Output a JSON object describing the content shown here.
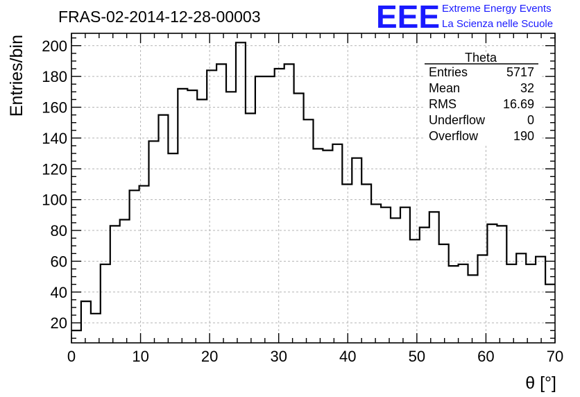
{
  "header": {
    "run_title": "FRAS-02-2014-12-28-00003",
    "logo_text": "EEE",
    "project_line1": "Extreme Energy Events",
    "project_line2": "La Scienza nelle Scuole",
    "brand_color": "#1a1aff"
  },
  "stats_box": {
    "title": "Theta",
    "rows": [
      {
        "label": "Entries",
        "value": "5717"
      },
      {
        "label": "Mean",
        "value": "32"
      },
      {
        "label": "RMS",
        "value": "16.69"
      },
      {
        "label": "Underflow",
        "value": "0"
      },
      {
        "label": "Overflow",
        "value": "190"
      }
    ]
  },
  "chart_data": {
    "type": "bar",
    "style": "step-histogram",
    "title": "FRAS-02-2014-12-28-00003",
    "xlabel": "θ [°]",
    "ylabel": "Entries/bin",
    "xlim": [
      0,
      70
    ],
    "ylim": [
      7,
      208
    ],
    "grid": true,
    "bin_width": 1.4,
    "x_ticks": [
      0,
      10,
      20,
      30,
      40,
      50,
      60,
      70
    ],
    "y_ticks": [
      20,
      40,
      60,
      80,
      100,
      120,
      140,
      160,
      180,
      200
    ],
    "values": [
      15,
      34,
      26,
      58,
      83,
      87,
      106,
      109,
      138,
      155,
      130,
      172,
      171,
      165,
      184,
      188,
      170,
      202,
      156,
      180,
      180,
      185,
      188,
      169,
      152,
      133,
      132,
      136,
      110,
      127,
      110,
      97,
      95,
      88,
      95,
      74,
      82,
      92,
      71,
      57,
      58,
      51,
      64,
      84,
      83,
      58,
      65,
      58,
      63,
      45
    ]
  }
}
